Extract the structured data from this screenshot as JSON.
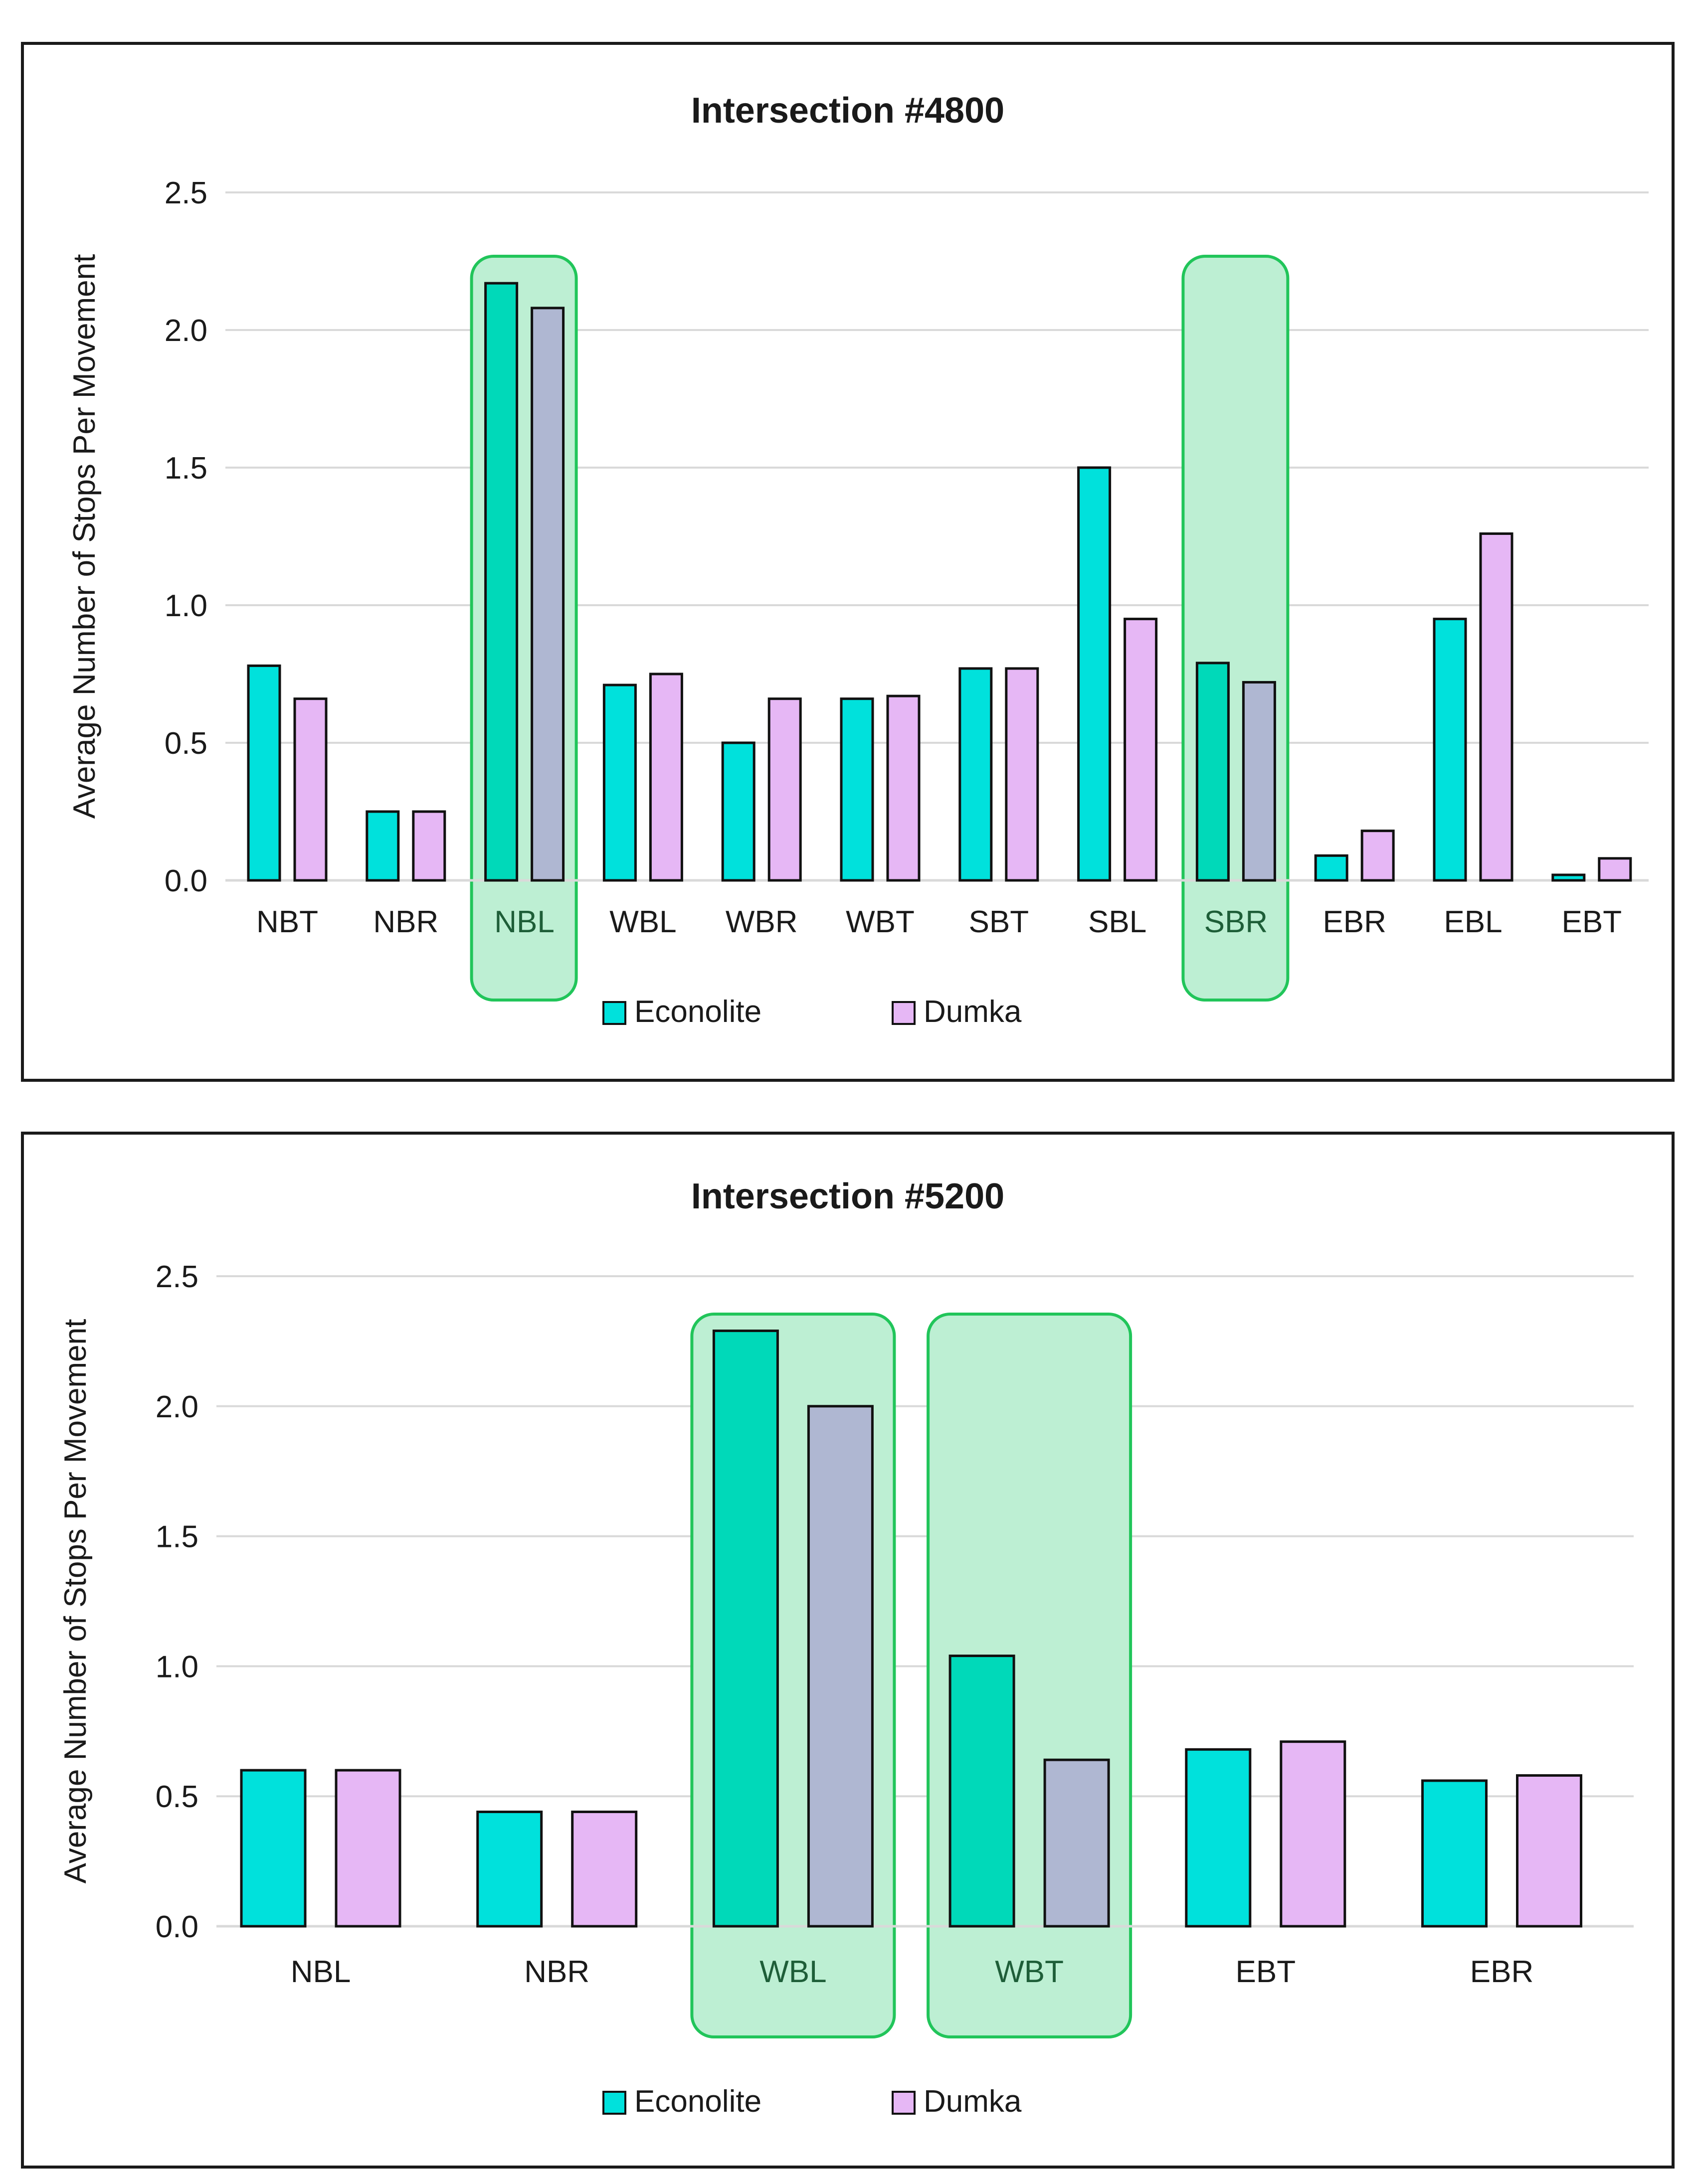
{
  "chart_data": [
    {
      "type": "bar",
      "title": "Intersection #4800",
      "xlabel": "",
      "ylabel": "Average Number of Stops Per Movement",
      "ylim": [
        0,
        2.5
      ],
      "yticks": [
        "0.0",
        "0.5",
        "1.0",
        "1.5",
        "2.0",
        "2.5"
      ],
      "grid": true,
      "legend_position": "bottom",
      "categories": [
        "NBT",
        "NBR",
        "NBL",
        "WBL",
        "WBR",
        "WBT",
        "SBT",
        "SBL",
        "SBR",
        "EBR",
        "EBL",
        "EBT"
      ],
      "series": [
        {
          "name": "Econolite",
          "values": [
            0.78,
            0.25,
            2.17,
            0.71,
            0.5,
            0.66,
            0.77,
            1.5,
            0.79,
            0.09,
            0.95,
            0.02
          ]
        },
        {
          "name": "Dumka",
          "values": [
            0.66,
            0.25,
            2.08,
            0.75,
            0.66,
            0.67,
            0.77,
            0.95,
            0.72,
            0.18,
            1.26,
            0.08
          ]
        }
      ],
      "highlighted": [
        "NBL",
        "SBR"
      ]
    },
    {
      "type": "bar",
      "title": "Intersection #5200",
      "xlabel": "",
      "ylabel": "Average Number of Stops Per Movement",
      "ylim": [
        0,
        2.5
      ],
      "yticks": [
        "0.0",
        "0.5",
        "1.0",
        "1.5",
        "2.0",
        "2.5"
      ],
      "grid": true,
      "legend_position": "bottom",
      "categories": [
        "NBL",
        "NBR",
        "WBL",
        "WBT",
        "EBT",
        "EBR"
      ],
      "series": [
        {
          "name": "Econolite",
          "values": [
            0.6,
            0.44,
            2.29,
            1.04,
            0.68,
            0.56
          ]
        },
        {
          "name": "Dumka",
          "values": [
            0.6,
            0.44,
            2.0,
            0.64,
            0.71,
            0.58
          ]
        }
      ],
      "highlighted": [
        "WBL",
        "WBT"
      ]
    }
  ],
  "colors": {
    "econolite": "#00E1DC",
    "dumka": "#E6B7F5",
    "econolite_highlight": "#00D9B9",
    "dumka_highlight": "#AFB7D2",
    "highlight_fill": "#BDEFD3",
    "highlight_border": "#21C55A",
    "highlight_text": "#1E5E38",
    "grid": "#D9D9D9",
    "text": "#1A1A1A"
  }
}
